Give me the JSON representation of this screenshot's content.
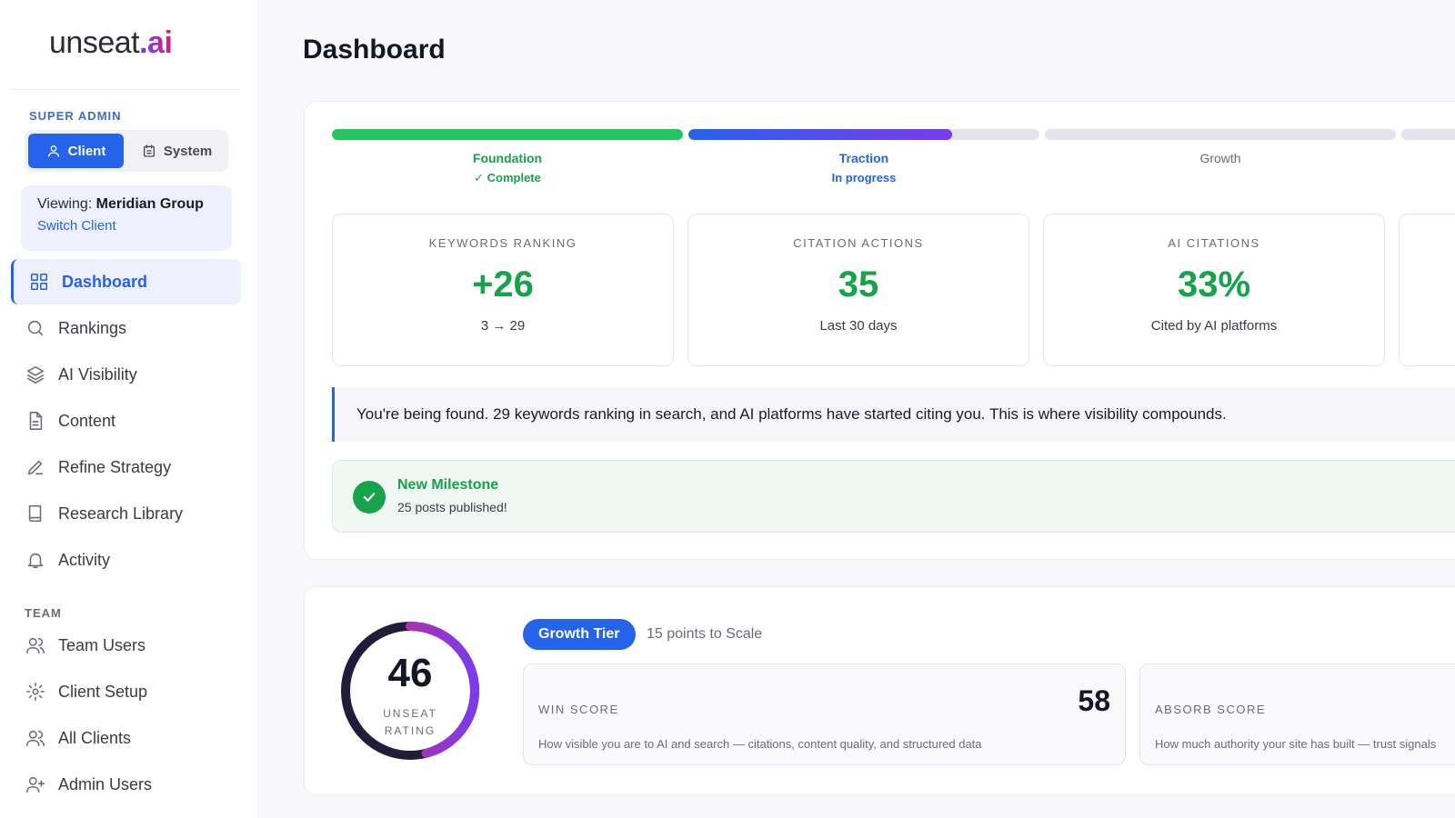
{
  "brand": {
    "name": "unseat",
    "dot": ".",
    "suffix": "ai"
  },
  "sidebar": {
    "super_admin_label": "SUPER ADMIN",
    "modes": [
      {
        "label": "Client",
        "active": true
      },
      {
        "label": "System",
        "active": false
      }
    ],
    "viewing": {
      "prefix": "Viewing:",
      "client": "Meridian Group",
      "switch_label": "Switch Client"
    },
    "nav": [
      {
        "label": "Dashboard",
        "icon": "grid-icon",
        "active": true
      },
      {
        "label": "Rankings",
        "icon": "search-icon"
      },
      {
        "label": "AI Visibility",
        "icon": "layers-icon"
      },
      {
        "label": "Content",
        "icon": "document-icon"
      },
      {
        "label": "Refine Strategy",
        "icon": "pen-icon"
      },
      {
        "label": "Research Library",
        "icon": "book-icon"
      },
      {
        "label": "Activity",
        "icon": "bell-icon"
      }
    ],
    "team_label": "TEAM",
    "team_nav": [
      {
        "label": "Team Users",
        "icon": "users-icon"
      },
      {
        "label": "Client Setup",
        "icon": "gear-icon"
      },
      {
        "label": "All Clients",
        "icon": "users-icon"
      },
      {
        "label": "Admin Users",
        "icon": "user-plus-icon"
      }
    ]
  },
  "page": {
    "title": "Dashboard"
  },
  "phases": [
    {
      "name": "Foundation",
      "status": "✓ Complete",
      "progress": 1.0,
      "color": "#22c55e"
    },
    {
      "name": "Traction",
      "status": "In progress",
      "progress": 0.75,
      "color": "#4f46e5"
    },
    {
      "name": "Growth",
      "status": "",
      "progress": 0
    }
  ],
  "stats": [
    {
      "label": "KEYWORDS RANKING",
      "value": "+26",
      "sub": "3 → 29"
    },
    {
      "label": "CITATION ACTIONS",
      "value": "35",
      "sub": "Last 30 days"
    },
    {
      "label": "AI CITATIONS",
      "value": "33%",
      "sub": "Cited by AI platforms"
    }
  ],
  "insight": "You're being found. 29 keywords ranking in search, and AI platforms have started citing you. This is where visibility compounds.",
  "milestone": {
    "title": "New Milestone",
    "subtitle": "25 posts published!"
  },
  "rating": {
    "value": "46",
    "label_line1": "UNSEAT",
    "label_line2": "RATING",
    "fraction": 0.46
  },
  "tier": {
    "label": "Growth Tier",
    "note": "15 points to Scale"
  },
  "scores": [
    {
      "label": "WIN SCORE",
      "value": "58",
      "desc": "How visible you are to AI and search — citations, content quality, and structured data"
    },
    {
      "label": "ABSORB SCORE",
      "value": "",
      "desc": "How much authority your site has built — trust signals"
    }
  ],
  "colors": {
    "accent": "#2563eb",
    "success": "#16a34a",
    "ring_start": "#db2777",
    "ring_end": "#7c3aed"
  }
}
